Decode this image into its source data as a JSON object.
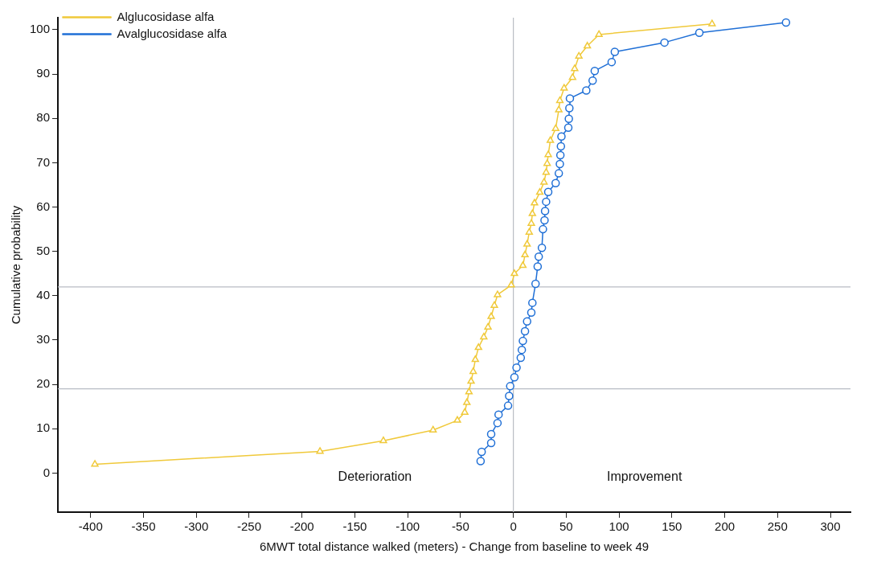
{
  "chart_data": {
    "type": "line",
    "xlabel": "6MWT total distance walked (meters) - Change from baseline to week 49",
    "ylabel": "Cumulative probability",
    "xlim": [
      -431,
      319
    ],
    "ylim": [
      -8.8,
      102.7
    ],
    "xticks": [
      -400,
      -350,
      -300,
      -250,
      -200,
      -150,
      -100,
      -50,
      0,
      50,
      100,
      150,
      200,
      250,
      300
    ],
    "yticks": [
      0,
      10,
      20,
      30,
      40,
      50,
      60,
      70,
      80,
      90,
      100
    ],
    "grid": false,
    "legend": "top left",
    "line_style": "solid",
    "ref_lines": [
      {
        "axis": "y",
        "value": 42,
        "color": "#b8bcc4"
      },
      {
        "axis": "y",
        "value": 19,
        "color": "#b8bcc4"
      },
      {
        "axis": "x",
        "value": 0,
        "color": "#b8bcc4"
      }
    ],
    "annotations": [
      "Deterioration",
      "Improvement"
    ],
    "series": [
      {
        "name": "Alglucosidase alfa",
        "color": "#f0c93a",
        "marker": "triangle",
        "x": [
          -396,
          -183,
          -123,
          -76,
          -53,
          -46,
          -44,
          -42,
          -40,
          -38,
          -36,
          -33,
          -28,
          -24,
          -21,
          -18,
          -15,
          -2,
          1,
          9,
          11,
          13,
          15,
          17,
          18,
          20,
          25,
          29,
          31,
          32,
          33,
          35,
          40,
          43,
          44,
          48,
          56,
          58,
          62,
          70,
          81,
          188
        ],
        "values": [
          2.0,
          4.9,
          7.3,
          9.7,
          11.9,
          13.7,
          15.9,
          18.3,
          20.7,
          22.9,
          25.6,
          28.3,
          30.7,
          32.9,
          35.3,
          37.8,
          40.2,
          42.4,
          45,
          46.8,
          49.2,
          51.6,
          54.3,
          56.3,
          58.5,
          60.9,
          63.3,
          65.6,
          67.8,
          69.8,
          71.8,
          75,
          77.7,
          81.9,
          84,
          86.8,
          89.2,
          91.2,
          94,
          96.3,
          98.9,
          101.3
        ]
      },
      {
        "name": "Avalglucosidase alfa",
        "color": "#1f6fd6",
        "marker": "circle",
        "x": [
          -31,
          -30,
          -21,
          -21,
          -15,
          -14,
          -5,
          -4,
          -3,
          1,
          3,
          7,
          8,
          9,
          11,
          13,
          17,
          18,
          21,
          23,
          24,
          27,
          28,
          29.5,
          30,
          31,
          33,
          40,
          43,
          44,
          44.5,
          45,
          45.5,
          52,
          52.5,
          53,
          53.5,
          69,
          75,
          77,
          93,
          96,
          143,
          176,
          258
        ],
        "values": [
          2.7,
          4.8,
          6.8,
          8.8,
          11.3,
          13.2,
          15.2,
          17.4,
          19.6,
          21.6,
          23.8,
          26.0,
          27.8,
          29.8,
          32.0,
          34.2,
          36.2,
          38.4,
          42.7,
          46.6,
          48.8,
          50.8,
          55.0,
          57.0,
          59.1,
          61.2,
          63.4,
          65.4,
          67.6,
          69.7,
          71.7,
          73.7,
          75.9,
          77.9,
          79.9,
          82.3,
          84.5,
          86.3,
          88.5,
          90.7,
          92.7,
          95.0,
          97.1,
          99.3,
          101.6
        ]
      }
    ]
  }
}
